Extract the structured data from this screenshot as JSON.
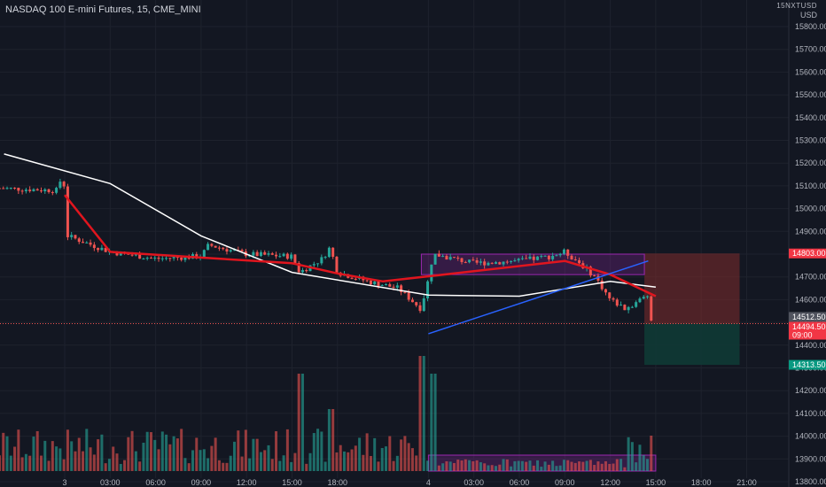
{
  "header": {
    "symbol_title": "NASDAQ 100 E-mini Futures, 15, CME_MINI",
    "flipped_code": "15NXTUSD",
    "currency": "USD"
  },
  "colors": {
    "background": "#131722",
    "up": "#26a69a",
    "down": "#ef5350",
    "ema_fast": "#e0151e",
    "sma_slow": "#ffffff",
    "trendline": "#2962ff",
    "range_box": "#9c27b0",
    "stop_zone": "#7f2b2b",
    "target_zone": "#0f3a35",
    "current_price_line": "#ef5350",
    "price_tag_red": "#f23645",
    "price_tag_gray": "#50535e",
    "price_tag_green": "#089981"
  },
  "chart_data": {
    "type": "candlestick",
    "interval": "15",
    "y_axis": {
      "ticks": [
        "15800.00",
        "15700.00",
        "15600.00",
        "15500.00",
        "15400.00",
        "15300.00",
        "15200.00",
        "15100.00",
        "15000.00",
        "14900.00",
        "14800.00",
        "14700.00",
        "14600.00",
        "14500.00",
        "14400.00",
        "14300.00",
        "14200.00",
        "14100.00",
        "14000.00",
        "13900.00",
        "13800.00"
      ],
      "range": [
        13760,
        15830
      ]
    },
    "x_axis": {
      "ticks": [
        "3",
        "03:00",
        "06:00",
        "09:00",
        "12:00",
        "15:00",
        "18:00",
        "4",
        "03:00",
        "06:00",
        "09:00",
        "12:00",
        "15:00",
        "18:00",
        "21:00"
      ]
    },
    "price_labels": [
      {
        "id": "stop",
        "text": "14803.00",
        "price": 14803,
        "style": "red"
      },
      {
        "id": "last",
        "text": "14512.50",
        "price": 14512.5,
        "style": "gray"
      },
      {
        "id": "current",
        "text": "14494.50",
        "sub": "09:00",
        "price": 14494.5,
        "style": "red"
      },
      {
        "id": "target",
        "text": "14313.50",
        "price": 14313.5,
        "style": "green"
      }
    ],
    "position": {
      "entry": 14494.5,
      "stop": 14803,
      "target": 14313.5
    },
    "range_box": {
      "top": 14800,
      "bottom": 14710
    },
    "ema_fast": [
      {
        "t": "3 00:00",
        "v": 15060
      },
      {
        "t": "3 03:00",
        "v": 14810
      },
      {
        "t": "3 09:00",
        "v": 14785
      },
      {
        "t": "3 15:00",
        "v": 14760
      },
      {
        "t": "3 18:00",
        "v": 14715
      },
      {
        "t": "3 21:00",
        "v": 14680
      },
      {
        "t": "4 03:00",
        "v": 14725
      },
      {
        "t": "4 09:00",
        "v": 14770
      },
      {
        "t": "4 12:00",
        "v": 14710
      },
      {
        "t": "4 15:00",
        "v": 14615
      }
    ],
    "sma_slow": [
      {
        "t": "2 20:00",
        "v": 15240
      },
      {
        "t": "3 03:00",
        "v": 15110
      },
      {
        "t": "3 09:00",
        "v": 14880
      },
      {
        "t": "3 15:00",
        "v": 14720
      },
      {
        "t": "4 00:00",
        "v": 14620
      },
      {
        "t": "4 06:00",
        "v": 14615
      },
      {
        "t": "4 12:00",
        "v": 14680
      },
      {
        "t": "4 15:00",
        "v": 14655
      }
    ],
    "trendline": [
      {
        "t": "4 00:00",
        "v": 14450
      },
      {
        "t": "4 14:30",
        "v": 14770
      }
    ]
  }
}
